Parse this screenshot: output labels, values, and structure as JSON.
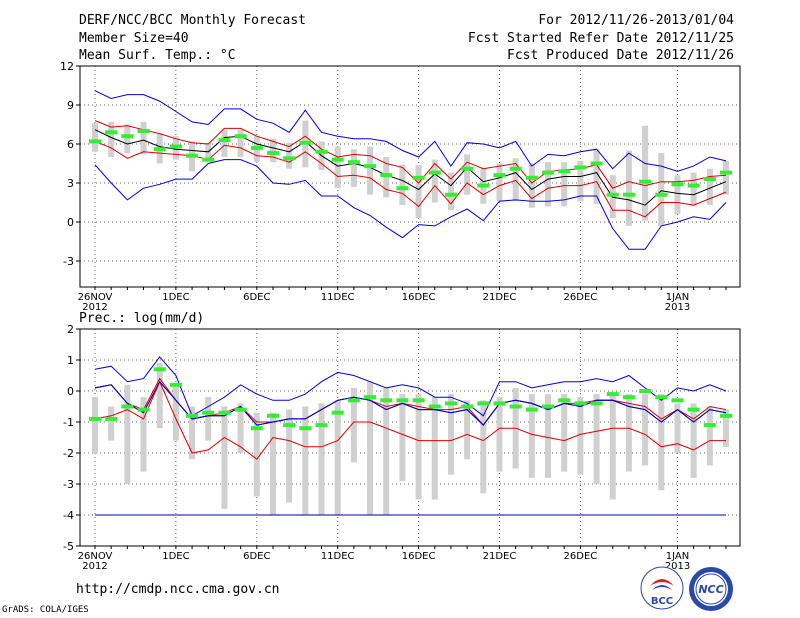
{
  "header": {
    "title": "DERF/NCC/BCC Monthly Forecast",
    "member_size": "Member Size=40",
    "variable": "Mean Surf. Temp.: °C",
    "period": "For 2012/11/26-2013/01/04",
    "started": "Fcst Started Refer Date 2012/11/25",
    "produced": "Fcst Produced Date 2012/11/26"
  },
  "footer": {
    "url": "http://cmdp.ncc.cma.gov.cn",
    "grads": "GrADS: COLA/IGES",
    "logo1_text": "BCC",
    "logo2_text": "NCC"
  },
  "colors": {
    "outer": "#0000dd",
    "inner": "#dd0000",
    "mean": "#000000",
    "box": "#d0d0d0",
    "marker": "#33ee33",
    "floor": "#000099"
  },
  "chart_data": [
    {
      "type": "line",
      "title": "",
      "ylabel": "Mean Surf. Temp.: °C",
      "ylim": [
        -5,
        12
      ],
      "yticks": [
        -3,
        0,
        3,
        6,
        9,
        12
      ],
      "xtick_labels": [
        {
          "day": 0,
          "label": "26NOV",
          "sub": "2012"
        },
        {
          "day": 5,
          "label": "1DEC",
          "sub": ""
        },
        {
          "day": 10,
          "label": "6DEC",
          "sub": ""
        },
        {
          "day": 15,
          "label": "11DEC",
          "sub": ""
        },
        {
          "day": 20,
          "label": "16DEC",
          "sub": ""
        },
        {
          "day": 25,
          "label": "21DEC",
          "sub": ""
        },
        {
          "day": 30,
          "label": "26DEC",
          "sub": ""
        },
        {
          "day": 36,
          "label": "1JAN",
          "sub": "2013"
        }
      ],
      "series": [
        {
          "name": "max",
          "values": [
            10.1,
            9.5,
            9.8,
            9.8,
            9.3,
            8.5,
            7.7,
            7.5,
            8.7,
            8.7,
            7.9,
            7.6,
            6.9,
            8.6,
            6.9,
            6.6,
            6.4,
            6.4,
            6.2,
            5.5,
            5.0,
            6.2,
            4.3,
            6.1,
            6.0,
            5.7,
            6.2,
            4.3,
            5.2,
            5.1,
            5.4,
            5.6,
            4.1,
            5.3,
            4.5,
            4.3,
            3.9,
            4.3,
            5.0,
            4.7
          ]
        },
        {
          "name": "upper",
          "values": [
            7.8,
            7.3,
            7.4,
            7.1,
            6.8,
            6.4,
            6.1,
            6.0,
            7.2,
            7.2,
            6.6,
            6.2,
            5.8,
            6.6,
            5.6,
            5.0,
            5.2,
            5.1,
            4.5,
            4.2,
            3.0,
            4.5,
            3.3,
            4.6,
            4.1,
            4.3,
            4.5,
            3.0,
            3.9,
            4.0,
            4.1,
            4.4,
            2.6,
            3.1,
            2.8,
            3.1,
            3.1,
            3.2,
            3.5,
            3.6
          ]
        },
        {
          "name": "mean",
          "values": [
            7.1,
            6.5,
            6.0,
            6.3,
            5.8,
            5.6,
            5.5,
            5.4,
            6.5,
            6.6,
            6.0,
            5.7,
            5.4,
            6.2,
            5.1,
            4.3,
            4.5,
            4.2,
            3.6,
            3.2,
            2.5,
            3.7,
            2.8,
            4.2,
            3.1,
            3.4,
            3.8,
            2.5,
            3.3,
            3.5,
            3.5,
            3.8,
            1.9,
            1.7,
            1.3,
            2.4,
            2.2,
            2.1,
            2.6,
            3.1
          ]
        },
        {
          "name": "lower",
          "values": [
            6.2,
            5.7,
            4.9,
            5.4,
            5.3,
            5.2,
            5.1,
            4.8,
            5.9,
            5.7,
            5.1,
            5.0,
            4.6,
            5.4,
            4.5,
            3.5,
            3.6,
            3.4,
            2.5,
            2.2,
            1.2,
            2.8,
            1.4,
            3.0,
            2.1,
            2.8,
            3.2,
            1.8,
            2.6,
            2.8,
            2.8,
            3.1,
            0.9,
            0.9,
            0.4,
            1.5,
            1.5,
            1.3,
            1.8,
            2.3
          ]
        },
        {
          "name": "min",
          "values": [
            4.4,
            3.0,
            1.7,
            2.6,
            2.9,
            3.3,
            3.3,
            4.5,
            4.8,
            4.8,
            4.3,
            3.0,
            2.9,
            3.2,
            2.0,
            2.0,
            1.1,
            0.5,
            -0.4,
            -1.2,
            -0.2,
            -0.3,
            0.4,
            1.0,
            0.1,
            1.6,
            1.7,
            1.6,
            1.6,
            1.7,
            2.0,
            2.0,
            -0.5,
            -2.1,
            -2.1,
            -0.3,
            0.0,
            0.4,
            0.2,
            1.5
          ]
        }
      ],
      "boxes": [
        {
          "day": 0,
          "low": 5.4,
          "high": 7.6,
          "median": 6.2
        },
        {
          "day": 1,
          "low": 5.0,
          "high": 7.7,
          "median": 6.9
        },
        {
          "day": 2,
          "low": 5.3,
          "high": 7.5,
          "median": 6.6
        },
        {
          "day": 3,
          "low": 5.2,
          "high": 7.7,
          "median": 7.0
        },
        {
          "day": 4,
          "low": 4.5,
          "high": 6.8,
          "median": 5.6
        },
        {
          "day": 5,
          "low": 4.8,
          "high": 6.6,
          "median": 5.8
        },
        {
          "day": 6,
          "low": 3.9,
          "high": 6.2,
          "median": 5.1
        },
        {
          "day": 7,
          "low": 4.6,
          "high": 6.1,
          "median": 4.8
        },
        {
          "day": 8,
          "low": 5.0,
          "high": 7.1,
          "median": 6.3
        },
        {
          "day": 9,
          "low": 5.0,
          "high": 7.1,
          "median": 6.6
        },
        {
          "day": 10,
          "low": 4.6,
          "high": 6.6,
          "median": 5.7
        },
        {
          "day": 11,
          "low": 4.6,
          "high": 6.4,
          "median": 5.3
        },
        {
          "day": 12,
          "low": 4.1,
          "high": 6.1,
          "median": 4.9
        },
        {
          "day": 13,
          "low": 4.2,
          "high": 7.8,
          "median": 6.1
        },
        {
          "day": 14,
          "low": 4.0,
          "high": 6.2,
          "median": 5.4
        },
        {
          "day": 15,
          "low": 2.6,
          "high": 5.8,
          "median": 4.8
        },
        {
          "day": 16,
          "low": 2.7,
          "high": 5.6,
          "median": 4.6
        },
        {
          "day": 17,
          "low": 2.1,
          "high": 5.8,
          "median": 4.3
        },
        {
          "day": 18,
          "low": 1.9,
          "high": 5.0,
          "median": 3.6
        },
        {
          "day": 19,
          "low": 1.3,
          "high": 4.4,
          "median": 2.6
        },
        {
          "day": 20,
          "low": 0.3,
          "high": 4.4,
          "median": 3.4
        },
        {
          "day": 21,
          "low": 1.5,
          "high": 4.8,
          "median": 3.8
        },
        {
          "day": 22,
          "low": 0.9,
          "high": 3.8,
          "median": 2.1
        },
        {
          "day": 23,
          "low": 2.1,
          "high": 5.2,
          "median": 4.1
        },
        {
          "day": 24,
          "low": 1.4,
          "high": 4.1,
          "median": 2.8
        },
        {
          "day": 25,
          "low": 1.6,
          "high": 4.5,
          "median": 3.6
        },
        {
          "day": 26,
          "low": 1.6,
          "high": 4.9,
          "median": 4.1
        },
        {
          "day": 27,
          "low": 1.1,
          "high": 4.5,
          "median": 3.4
        },
        {
          "day": 28,
          "low": 1.2,
          "high": 4.6,
          "median": 3.8
        },
        {
          "day": 29,
          "low": 1.2,
          "high": 4.6,
          "median": 3.9
        },
        {
          "day": 30,
          "low": 1.6,
          "high": 4.7,
          "median": 4.2
        },
        {
          "day": 31,
          "low": 1.4,
          "high": 5.6,
          "median": 4.5
        },
        {
          "day": 32,
          "low": 0.3,
          "high": 3.6,
          "median": 2.1
        },
        {
          "day": 33,
          "low": -0.3,
          "high": 5.5,
          "median": 2.1
        },
        {
          "day": 34,
          "low": 0.1,
          "high": 7.4,
          "median": 3.1
        },
        {
          "day": 35,
          "low": -0.3,
          "high": 5.3,
          "median": 2.1
        },
        {
          "day": 36,
          "low": 0.6,
          "high": 3.6,
          "median": 2.9
        },
        {
          "day": 37,
          "low": 1.2,
          "high": 3.8,
          "median": 2.8
        },
        {
          "day": 38,
          "low": 1.3,
          "high": 4.1,
          "median": 3.3
        },
        {
          "day": 39,
          "low": 2.1,
          "high": 4.7,
          "median": 3.8
        }
      ]
    },
    {
      "type": "line",
      "title": "",
      "ylabel": "Prec.: log(mm/d)",
      "ylim": [
        -5,
        2
      ],
      "yticks": [
        -5,
        -4,
        -3,
        -2,
        -1,
        0,
        1,
        2
      ],
      "floor": -4,
      "xtick_labels": [
        {
          "day": 0,
          "label": "26NOV",
          "sub": "2012"
        },
        {
          "day": 5,
          "label": "1DEC",
          "sub": ""
        },
        {
          "day": 10,
          "label": "6DEC",
          "sub": ""
        },
        {
          "day": 15,
          "label": "11DEC",
          "sub": ""
        },
        {
          "day": 20,
          "label": "16DEC",
          "sub": ""
        },
        {
          "day": 25,
          "label": "21DEC",
          "sub": ""
        },
        {
          "day": 30,
          "label": "26DEC",
          "sub": ""
        },
        {
          "day": 36,
          "label": "1JAN",
          "sub": "2013"
        }
      ],
      "series": [
        {
          "name": "max",
          "values": [
            0.7,
            0.8,
            0.3,
            0.4,
            1.1,
            0.5,
            -0.8,
            -0.5,
            -0.2,
            0.2,
            -0.1,
            -0.3,
            -0.3,
            -0.1,
            0.3,
            0.6,
            0.5,
            0.3,
            0.1,
            0.2,
            0.1,
            -0.2,
            -0.2,
            -0.4,
            -0.8,
            0.3,
            0.3,
            0.1,
            0.2,
            0.3,
            0.3,
            0.4,
            0.3,
            0.5,
            0.1,
            -0.3,
            0.1,
            0.0,
            0.2,
            0.0
          ]
        },
        {
          "name": "upper",
          "values": [
            0.1,
            0.2,
            -0.4,
            -0.6,
            0.4,
            -0.3,
            -0.9,
            -0.8,
            -0.7,
            -0.5,
            -1.0,
            -1.0,
            -0.9,
            -0.9,
            -0.6,
            -0.3,
            -0.2,
            -0.3,
            -0.5,
            -0.4,
            -0.5,
            -0.6,
            -0.6,
            -0.5,
            -1.1,
            -0.4,
            -0.3,
            -0.4,
            -0.6,
            -0.4,
            -0.4,
            -0.3,
            -0.3,
            -0.4,
            -0.5,
            -0.9,
            -0.6,
            -0.9,
            -0.5,
            -0.6
          ]
        },
        {
          "name": "mean",
          "values": [
            0.1,
            0.2,
            -0.4,
            -0.7,
            0.3,
            -0.3,
            -0.9,
            -0.8,
            -0.8,
            -0.5,
            -1.1,
            -1.0,
            -0.9,
            -0.9,
            -0.6,
            -0.3,
            -0.2,
            -0.3,
            -0.6,
            -0.4,
            -0.6,
            -0.6,
            -0.7,
            -0.6,
            -1.1,
            -0.4,
            -0.3,
            -0.4,
            -0.6,
            -0.4,
            -0.5,
            -0.3,
            -0.3,
            -0.5,
            -0.6,
            -1.0,
            -0.6,
            -1.0,
            -0.6,
            -0.7
          ]
        },
        {
          "name": "lower",
          "values": [
            -0.9,
            -0.8,
            -0.6,
            -0.9,
            0.3,
            -0.9,
            -2.0,
            -1.9,
            -1.5,
            -1.8,
            -2.2,
            -1.5,
            -1.6,
            -1.8,
            -1.8,
            -1.6,
            -1.0,
            -1.0,
            -1.2,
            -1.4,
            -1.6,
            -1.6,
            -1.6,
            -1.4,
            -1.6,
            -1.2,
            -1.2,
            -1.4,
            -1.5,
            -1.6,
            -1.4,
            -1.3,
            -1.2,
            -1.2,
            -1.4,
            -1.8,
            -1.7,
            -1.9,
            -1.6,
            -1.6
          ]
        },
        {
          "name": "min",
          "values": [
            0.1,
            0.2,
            -0.4,
            -0.7,
            0.3,
            -0.3,
            -0.9,
            -0.8,
            -0.8,
            -0.5,
            -1.1,
            -1.0,
            -0.9,
            -0.9,
            -0.6,
            -0.3,
            -0.2,
            -0.3,
            -0.6,
            -0.4,
            -0.6,
            -0.6,
            -0.7,
            -0.6,
            -1.1,
            -0.4,
            -0.3,
            -0.4,
            -0.6,
            -0.4,
            -0.5,
            -0.3,
            -0.3,
            -0.5,
            -0.6,
            -1.0,
            -0.6,
            -1.0,
            -0.6,
            -0.7
          ]
        }
      ],
      "boxes": [
        {
          "day": 0,
          "low": -2.0,
          "high": -0.2,
          "median": -0.9
        },
        {
          "day": 1,
          "low": -1.6,
          "high": -0.5,
          "median": -0.9
        },
        {
          "day": 2,
          "low": -3.0,
          "high": 0.2,
          "median": -0.5
        },
        {
          "day": 3,
          "low": -2.6,
          "high": -0.2,
          "median": -0.6
        },
        {
          "day": 4,
          "low": -1.2,
          "high": 0.9,
          "median": 0.7
        },
        {
          "day": 5,
          "low": -1.6,
          "high": 0.2,
          "median": 0.2
        },
        {
          "day": 6,
          "low": -2.2,
          "high": -0.5,
          "median": -0.8
        },
        {
          "day": 7,
          "low": -1.6,
          "high": -0.2,
          "median": -0.7
        },
        {
          "day": 8,
          "low": -3.8,
          "high": -0.5,
          "median": -0.7
        },
        {
          "day": 9,
          "low": -2.0,
          "high": -0.4,
          "median": -0.6
        },
        {
          "day": 10,
          "low": -3.4,
          "high": -0.7,
          "median": -1.2
        },
        {
          "day": 11,
          "low": -4.0,
          "high": -0.7,
          "median": -0.8
        },
        {
          "day": 12,
          "low": -3.6,
          "high": -0.6,
          "median": -1.1
        },
        {
          "day": 13,
          "low": -4.0,
          "high": -0.5,
          "median": -1.2
        },
        {
          "day": 14,
          "low": -4.0,
          "high": -0.4,
          "median": -1.1
        },
        {
          "day": 15,
          "low": -4.0,
          "high": -0.3,
          "median": -0.7
        },
        {
          "day": 16,
          "low": -2.3,
          "high": 0.1,
          "median": -0.3
        },
        {
          "day": 17,
          "low": -4.0,
          "high": 0.3,
          "median": -0.2
        },
        {
          "day": 18,
          "low": -4.0,
          "high": 0.1,
          "median": -0.3
        },
        {
          "day": 19,
          "low": -2.9,
          "high": -0.1,
          "median": -0.3
        },
        {
          "day": 20,
          "low": -3.5,
          "high": -0.1,
          "median": -0.3
        },
        {
          "day": 21,
          "low": -3.5,
          "high": -0.2,
          "median": -0.5
        },
        {
          "day": 22,
          "low": -2.7,
          "high": -0.1,
          "median": -0.4
        },
        {
          "day": 23,
          "low": -2.2,
          "high": -0.3,
          "median": -0.5
        },
        {
          "day": 24,
          "low": -3.3,
          "high": -0.3,
          "median": -0.4
        },
        {
          "day": 25,
          "low": -2.6,
          "high": -0.2,
          "median": -0.4
        },
        {
          "day": 26,
          "low": -2.5,
          "high": 0.1,
          "median": -0.5
        },
        {
          "day": 27,
          "low": -2.8,
          "high": -0.1,
          "median": -0.6
        },
        {
          "day": 28,
          "low": -2.8,
          "high": -0.1,
          "median": -0.5
        },
        {
          "day": 29,
          "low": -2.6,
          "high": -0.1,
          "median": -0.3
        },
        {
          "day": 30,
          "low": -2.7,
          "high": -0.2,
          "median": -0.4
        },
        {
          "day": 31,
          "low": -3.0,
          "high": -0.1,
          "median": -0.4
        },
        {
          "day": 32,
          "low": -3.5,
          "high": -0.1,
          "median": -0.1
        },
        {
          "day": 33,
          "low": -2.6,
          "high": -0.1,
          "median": -0.2
        },
        {
          "day": 34,
          "low": -2.4,
          "high": -0.1,
          "median": 0.0
        },
        {
          "day": 35,
          "low": -3.2,
          "high": -0.1,
          "median": -0.2
        },
        {
          "day": 36,
          "low": -2.0,
          "high": -0.4,
          "median": -0.3
        },
        {
          "day": 37,
          "low": -2.8,
          "high": -0.4,
          "median": -0.6
        },
        {
          "day": 38,
          "low": -2.4,
          "high": -0.5,
          "median": -1.1
        },
        {
          "day": 39,
          "low": -1.8,
          "high": -0.6,
          "median": -0.8
        }
      ]
    }
  ]
}
